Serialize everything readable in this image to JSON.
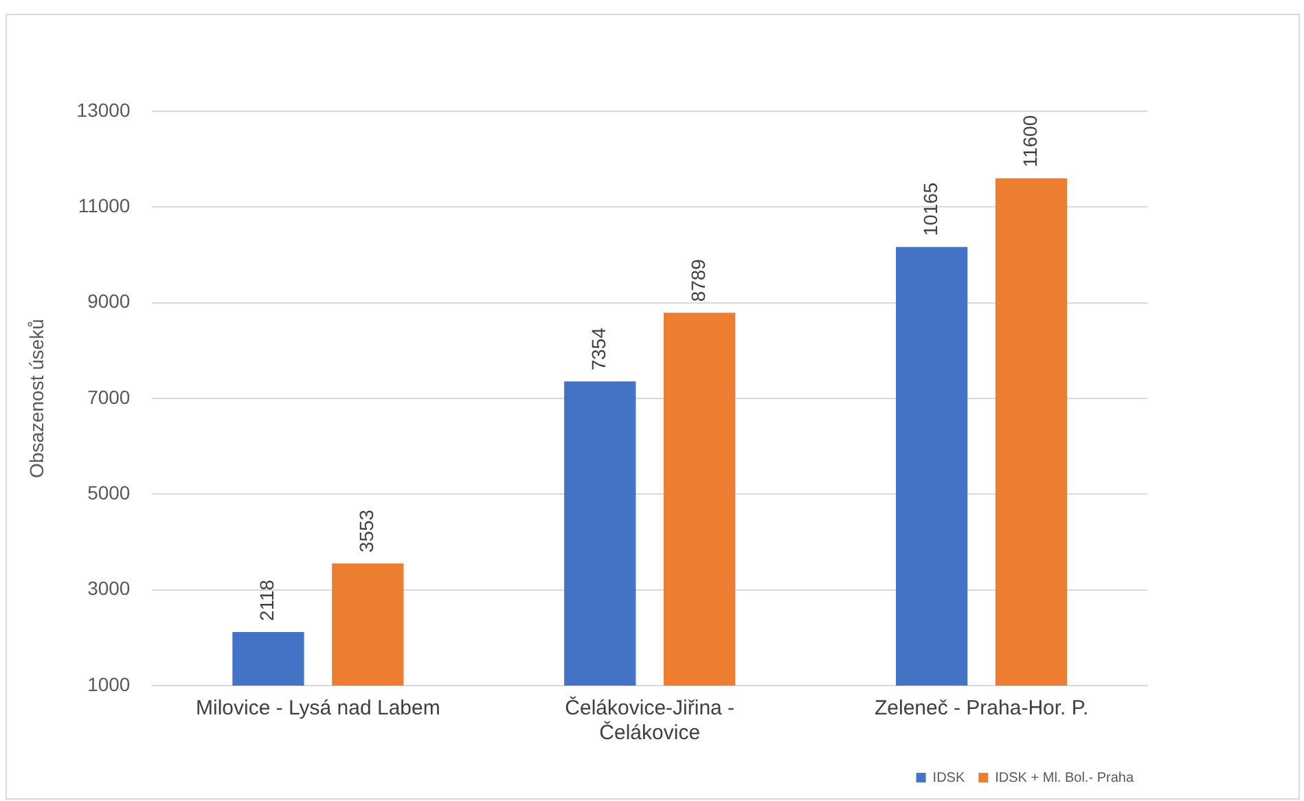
{
  "chart_data": {
    "type": "bar",
    "ylabel": "Obsazenost úseků",
    "categories": [
      "Milovice - Lysá nad Labem",
      "Čelákovice-Jiřina - Čelákovice",
      "Zeleneč - Praha-Hor. P."
    ],
    "series": [
      {
        "name": "IDSK",
        "color": "#4472c4",
        "values": [
          2118,
          7354,
          10165
        ]
      },
      {
        "name": "IDSK + Ml. Bol.- Praha",
        "color": "#ed7d31",
        "values": [
          3553,
          8789,
          11600
        ]
      }
    ],
    "ylim": [
      1000,
      13000
    ],
    "yticks": [
      1000,
      3000,
      5000,
      7000,
      9000,
      11000,
      13000
    ],
    "grid": "y",
    "legend": "bottom right",
    "data_labels": true
  }
}
